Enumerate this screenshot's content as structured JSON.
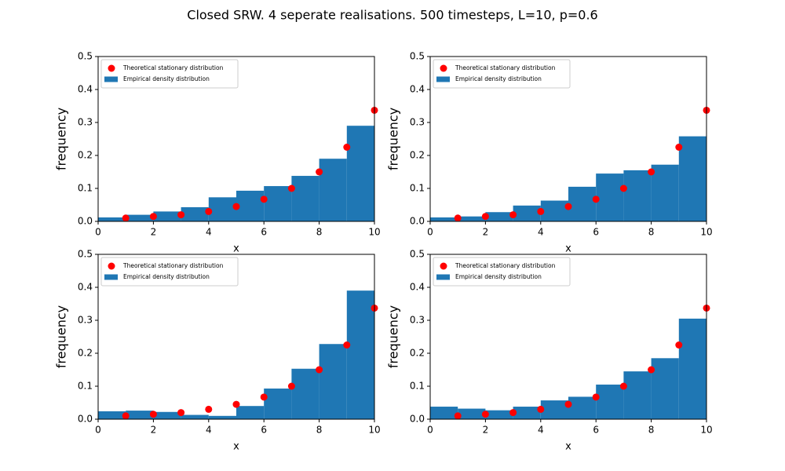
{
  "title": "Closed SRW. 4 seperate realisations. 500 timesteps, L=10, p=0.6",
  "chart_data": [
    {
      "type": "histogram",
      "xlabel": "x",
      "ylabel": "frequency",
      "xlim": [
        0,
        10
      ],
      "ylim": [
        0,
        0.5
      ],
      "xticks": [
        0,
        2,
        4,
        6,
        8,
        10
      ],
      "yticks": [
        {
          "value": 0,
          "label": "0.0"
        },
        0.1,
        0.2,
        0.3,
        0.4,
        0.5
      ],
      "legend": "upper left",
      "series": [
        {
          "name": "Theoretical stationary distribution",
          "type": "scatter",
          "color": "#ff0000",
          "x": [
            1,
            2,
            3,
            4,
            5,
            6,
            7,
            8,
            9,
            10
          ],
          "values": [
            0.01,
            0.015,
            0.02,
            0.03,
            0.045,
            0.067,
            0.1,
            0.15,
            0.225,
            0.337
          ]
        },
        {
          "name": "Empirical density distribution",
          "type": "histogram",
          "color": "#1f77b4",
          "bins": [
            0,
            1,
            2,
            3,
            4,
            5,
            6,
            7,
            8,
            9,
            10
          ],
          "values": [
            0.012,
            0.02,
            0.03,
            0.043,
            0.073,
            0.093,
            0.107,
            0.138,
            0.19,
            0.29
          ]
        }
      ]
    },
    {
      "type": "histogram",
      "xlabel": "x",
      "ylabel": "frequency",
      "xlim": [
        0,
        10
      ],
      "ylim": [
        0,
        0.5
      ],
      "xticks": [
        0,
        2,
        4,
        6,
        8,
        10
      ],
      "yticks": [
        {
          "value": 0,
          "label": "0.0"
        },
        0.1,
        0.2,
        0.3,
        0.4,
        0.5
      ],
      "legend": "upper left",
      "series": [
        {
          "name": "Theoretical stationary distribution",
          "type": "scatter",
          "color": "#ff0000",
          "x": [
            1,
            2,
            3,
            4,
            5,
            6,
            7,
            8,
            9,
            10
          ],
          "values": [
            0.01,
            0.015,
            0.02,
            0.03,
            0.045,
            0.067,
            0.1,
            0.15,
            0.225,
            0.337
          ]
        },
        {
          "name": "Empirical density distribution",
          "type": "histogram",
          "color": "#1f77b4",
          "bins": [
            0,
            1,
            2,
            3,
            4,
            5,
            6,
            7,
            8,
            9,
            10
          ],
          "values": [
            0.012,
            0.015,
            0.028,
            0.048,
            0.063,
            0.105,
            0.145,
            0.155,
            0.172,
            0.258
          ]
        }
      ]
    },
    {
      "type": "histogram",
      "xlabel": "x",
      "ylabel": "frequency",
      "xlim": [
        0,
        10
      ],
      "ylim": [
        0,
        0.5
      ],
      "xticks": [
        0,
        2,
        4,
        6,
        8,
        10
      ],
      "yticks": [
        {
          "value": 0,
          "label": "0.0"
        },
        0.1,
        0.2,
        0.3,
        0.4,
        0.5
      ],
      "legend": "upper left",
      "series": [
        {
          "name": "Theoretical stationary distribution",
          "type": "scatter",
          "color": "#ff0000",
          "x": [
            1,
            2,
            3,
            4,
            5,
            6,
            7,
            8,
            9,
            10
          ],
          "values": [
            0.01,
            0.015,
            0.02,
            0.03,
            0.045,
            0.067,
            0.1,
            0.15,
            0.225,
            0.337
          ]
        },
        {
          "name": "Empirical density distribution",
          "type": "histogram",
          "color": "#1f77b4",
          "bins": [
            0,
            1,
            2,
            3,
            4,
            5,
            6,
            7,
            8,
            9,
            10
          ],
          "values": [
            0.024,
            0.026,
            0.022,
            0.013,
            0.01,
            0.04,
            0.093,
            0.153,
            0.228,
            0.39
          ]
        }
      ]
    },
    {
      "type": "histogram",
      "xlabel": "x",
      "ylabel": "frequency",
      "xlim": [
        0,
        10
      ],
      "ylim": [
        0,
        0.5
      ],
      "xticks": [
        0,
        2,
        4,
        6,
        8,
        10
      ],
      "yticks": [
        {
          "value": 0,
          "label": "0.0"
        },
        0.1,
        0.2,
        0.3,
        0.4,
        0.5
      ],
      "legend": "upper left",
      "series": [
        {
          "name": "Theoretical stationary distribution",
          "type": "scatter",
          "color": "#ff0000",
          "x": [
            1,
            2,
            3,
            4,
            5,
            6,
            7,
            8,
            9,
            10
          ],
          "values": [
            0.01,
            0.015,
            0.02,
            0.03,
            0.045,
            0.067,
            0.1,
            0.15,
            0.225,
            0.337
          ]
        },
        {
          "name": "Empirical density distribution",
          "type": "histogram",
          "color": "#1f77b4",
          "bins": [
            0,
            1,
            2,
            3,
            4,
            5,
            6,
            7,
            8,
            9,
            10
          ],
          "values": [
            0.038,
            0.032,
            0.027,
            0.038,
            0.057,
            0.068,
            0.105,
            0.145,
            0.185,
            0.305
          ]
        }
      ]
    }
  ]
}
